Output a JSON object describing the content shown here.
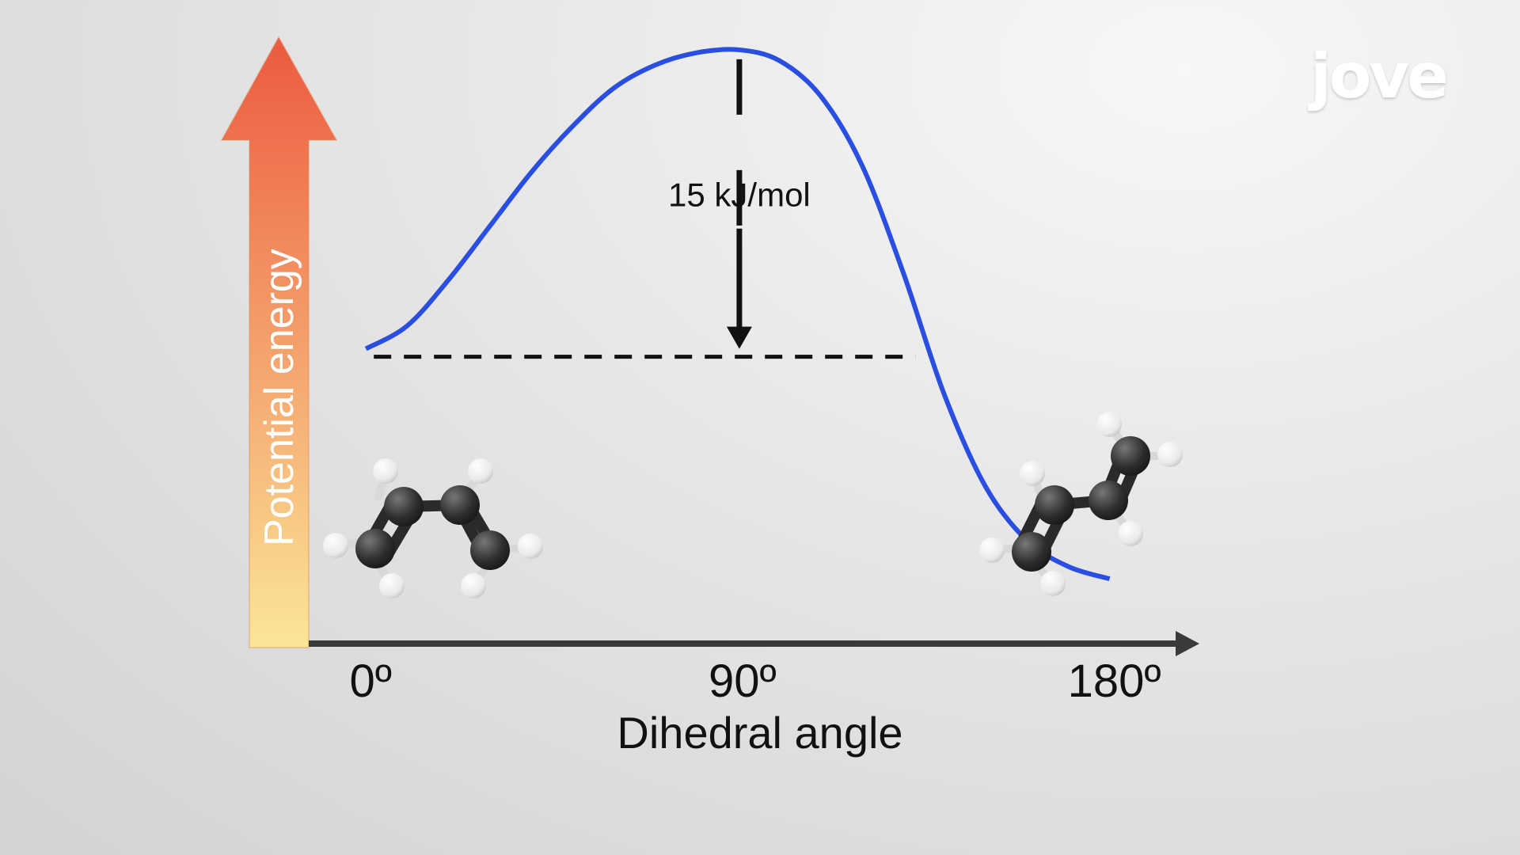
{
  "logo": {
    "text": "jove"
  },
  "colors": {
    "curve": "#2a4fe0",
    "axis": "#3a3a3a",
    "energy_arrow_top": "#ec5a3e",
    "energy_arrow_bottom": "#fbe698",
    "carbon": "#2e2e2e",
    "hydrogen": "#f2f2f2"
  },
  "chart_data": {
    "type": "line",
    "xlabel": "Dihedral angle",
    "ylabel": "Potential energy",
    "x_ticks": [
      {
        "value": 0,
        "label": "0º"
      },
      {
        "value": 90,
        "label": "90º"
      },
      {
        "value": 180,
        "label": "180º"
      }
    ],
    "xlim": [
      -10,
      200
    ],
    "ylim": [
      -5,
      30
    ],
    "grid": false,
    "series": [
      {
        "values_x": [
          0,
          10,
          20,
          30,
          40,
          50,
          60,
          70,
          80,
          90,
          100,
          110,
          120,
          130,
          140,
          150,
          160,
          170,
          180
        ],
        "values_y": [
          15,
          16.5,
          19.5,
          23,
          26.5,
          29.5,
          32,
          33.5,
          34.3,
          34.5,
          33.8,
          31.5,
          27,
          20,
          12,
          6,
          2.5,
          0.8,
          0
        ]
      }
    ],
    "annotation": {
      "text": "15 kJ/mol",
      "at_x": 90,
      "from_y": 34.5,
      "to_y": 15
    },
    "reference_line_y": 15
  }
}
